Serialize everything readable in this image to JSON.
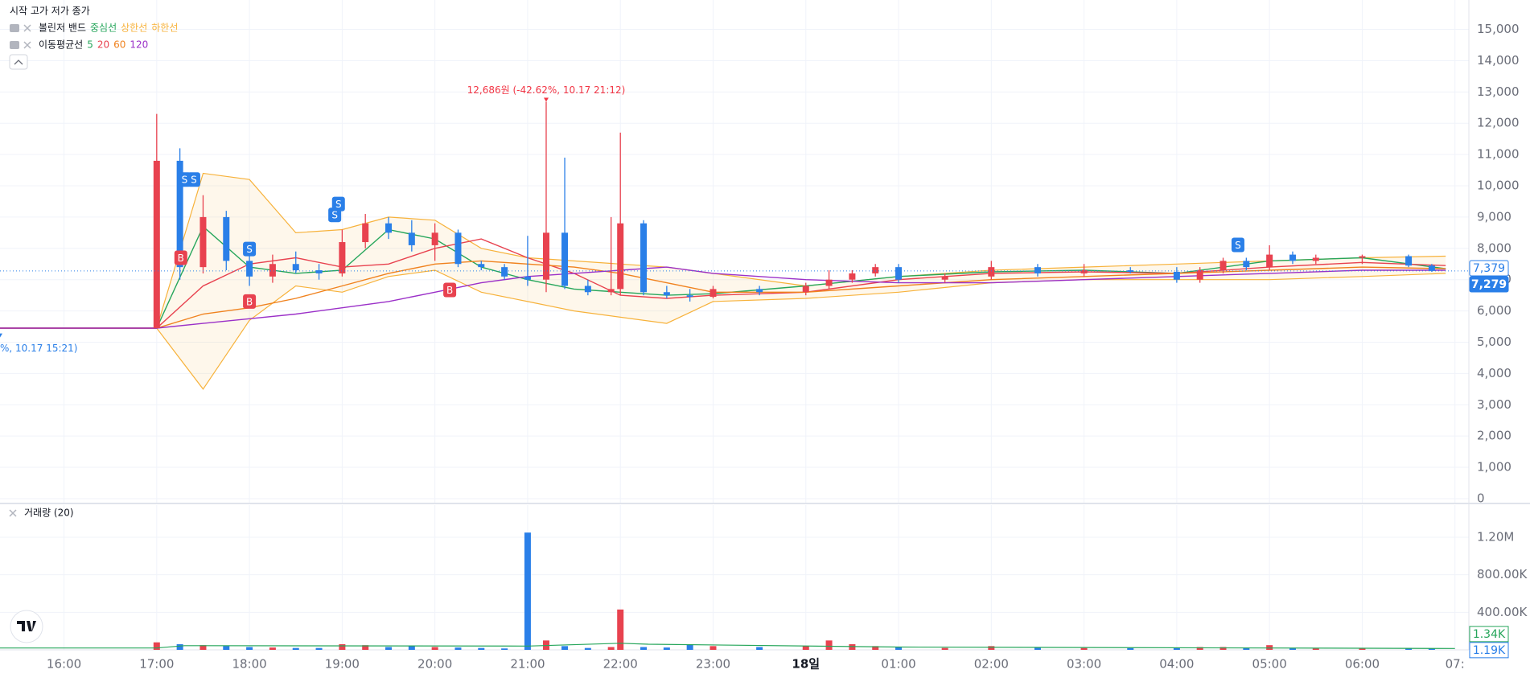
{
  "chart_data": [
    {
      "type": "candlestick",
      "ohlc_label": "시작 고가 저가 종가",
      "xlim": [
        15.31,
        31.15
      ],
      "ylim": [
        -130,
        15940
      ],
      "xticks": [
        {
          "value": 16,
          "label": "16:00"
        },
        {
          "value": 17,
          "label": "17:00"
        },
        {
          "value": 18,
          "label": "18:00"
        },
        {
          "value": 19,
          "label": "19:00"
        },
        {
          "value": 20,
          "label": "20:00"
        },
        {
          "value": 21,
          "label": "21:00"
        },
        {
          "value": 22,
          "label": "22:00"
        },
        {
          "value": 23,
          "label": "23:00"
        },
        {
          "value": 24,
          "label": "18일"
        },
        {
          "value": 25,
          "label": "01:00"
        },
        {
          "value": 26,
          "label": "02:00"
        },
        {
          "value": 27,
          "label": "03:00"
        },
        {
          "value": 28,
          "label": "04:00"
        },
        {
          "value": 29,
          "label": "05:00"
        },
        {
          "value": 30,
          "label": "06:00"
        },
        {
          "value": 31,
          "label": "07:"
        }
      ],
      "yticks": [
        0,
        {
          "value": 1000,
          "label": "1,000"
        },
        {
          "value": 2000,
          "label": "2,000"
        },
        {
          "value": 3000,
          "label": "3,000"
        },
        {
          "value": 4000,
          "label": "4,000"
        },
        {
          "value": 5000,
          "label": "5,000"
        },
        {
          "value": 6000,
          "label": "6,000"
        },
        {
          "value": 7000,
          "label": "7,000"
        },
        {
          "value": 8000,
          "label": "8,000"
        },
        {
          "value": 9000,
          "label": "9,000"
        },
        {
          "value": 10000,
          "label": "10,000"
        },
        {
          "value": 11000,
          "label": "11,000"
        },
        {
          "value": 12000,
          "label": "12,000"
        },
        {
          "value": 13000,
          "label": "13,000"
        },
        {
          "value": 14000,
          "label": "14,000"
        },
        {
          "value": 15000,
          "label": "15,000"
        }
      ],
      "grid": true,
      "up_color": "#e8424f",
      "down_color": "#2a7fe8",
      "x": [
        17,
        17.25,
        17.5,
        17.75,
        18,
        18.25,
        18.5,
        18.75,
        19,
        19.25,
        19.5,
        19.75,
        20,
        20.25,
        20.5,
        20.75,
        21,
        21.2,
        21.4,
        21.65,
        21.9,
        22,
        22.25,
        22.5,
        22.75,
        23,
        23.5,
        24,
        24.25,
        24.5,
        24.75,
        25,
        25.5,
        26,
        26.5,
        27,
        27.5,
        28,
        28.25,
        28.5,
        28.75,
        29,
        29.25,
        29.5,
        30,
        30.5,
        30.75
      ],
      "open": [
        5450,
        10800,
        7400,
        9000,
        7600,
        7100,
        7500,
        7300,
        7200,
        8200,
        8800,
        8500,
        8100,
        8500,
        7500,
        7400,
        7100,
        7000,
        8500,
        6800,
        6600,
        6700,
        8800,
        6600,
        6500,
        6450,
        6700,
        6600,
        6800,
        7000,
        7200,
        7400,
        7000,
        7100,
        7400,
        7200,
        7300,
        7250,
        7000,
        7300,
        7600,
        7400,
        7800,
        7600,
        7700,
        7750,
        7450
      ],
      "high": [
        12300,
        11200,
        9700,
        9200,
        7900,
        7800,
        7900,
        7500,
        8600,
        9100,
        9000,
        8900,
        8800,
        8600,
        7600,
        7500,
        8400,
        12686,
        10900,
        7000,
        9000,
        11700,
        8900,
        6800,
        6700,
        6800,
        6800,
        6900,
        7300,
        7300,
        7500,
        7500,
        7200,
        7600,
        7500,
        7500,
        7400,
        7400,
        7400,
        7700,
        7700,
        8100,
        7900,
        7800,
        7800,
        7800,
        7500
      ],
      "low": [
        5450,
        7000,
        7200,
        7300,
        6800,
        6900,
        7200,
        7000,
        7100,
        8000,
        8300,
        7900,
        7600,
        7400,
        7300,
        7000,
        6800,
        6600,
        6700,
        6500,
        6500,
        6500,
        6500,
        6400,
        6300,
        6400,
        6500,
        6500,
        6700,
        6900,
        7100,
        6900,
        6900,
        7000,
        7100,
        7100,
        7200,
        6900,
        6900,
        7200,
        7300,
        7300,
        7500,
        7500,
        7500,
        7400,
        7250
      ],
      "close": [
        10800,
        7400,
        9000,
        7600,
        7100,
        7500,
        7300,
        7200,
        8200,
        8800,
        8500,
        8100,
        8500,
        7500,
        7400,
        7100,
        7000,
        8500,
        6800,
        6600,
        6700,
        8800,
        6600,
        6500,
        6450,
        6700,
        6600,
        6800,
        7000,
        7200,
        7400,
        7000,
        7100,
        7400,
        7200,
        7300,
        7250,
        7000,
        7300,
        7600,
        7400,
        7800,
        7600,
        7700,
        7750,
        7450,
        7279
      ],
      "ma_title": "이동평균선",
      "lines_x": [
        15.31,
        17,
        17.5,
        18,
        18.5,
        19,
        19.5,
        20,
        20.5,
        21,
        21.5,
        22,
        22.5,
        23,
        24,
        25,
        26,
        27,
        28,
        29,
        30,
        30.9
      ],
      "lines": [
        {
          "name": "5",
          "color": "#26a65b",
          "values": [
            5450,
            5450,
            8700,
            7400,
            7200,
            7300,
            8600,
            8300,
            7400,
            7000,
            6700,
            6600,
            6500,
            6550,
            6800,
            7100,
            7250,
            7300,
            7200,
            7600,
            7700,
            7350
          ]
        },
        {
          "name": "20",
          "color": "#e8424f",
          "values": [
            5450,
            5450,
            6800,
            7500,
            7700,
            7400,
            7500,
            8000,
            8300,
            7700,
            7200,
            6500,
            6400,
            6500,
            6600,
            7000,
            7200,
            7250,
            7200,
            7400,
            7550,
            7450
          ]
        },
        {
          "name": "60",
          "color": "#f0821e",
          "values": [
            5450,
            5450,
            5900,
            6100,
            6400,
            6800,
            7200,
            7500,
            7600,
            7500,
            7400,
            7200,
            6900,
            6600,
            6600,
            6800,
            7000,
            7100,
            7200,
            7300,
            7400,
            7350
          ]
        },
        {
          "name": "120",
          "color": "#9b30c8",
          "values": [
            5450,
            5450,
            5600,
            5750,
            5900,
            6100,
            6300,
            6600,
            6900,
            7100,
            7200,
            7300,
            7400,
            7200,
            7000,
            6900,
            6900,
            7000,
            7100,
            7200,
            7300,
            7300
          ]
        }
      ],
      "bollinger": {
        "title": "볼린저 밴드",
        "middle_name": "중심선",
        "middle_color": "#26a65b",
        "upper": {
          "name": "상한선",
          "color": "#f7b23b",
          "values": [
            5450,
            5450,
            10400,
            10200,
            8500,
            8600,
            9000,
            8900,
            8000,
            7700,
            7600,
            7500,
            7400,
            7200,
            6800,
            7100,
            7300,
            7400,
            7500,
            7600,
            7700,
            7750
          ]
        },
        "lower": {
          "name": "하한선",
          "color": "#f7b23b",
          "values": [
            5450,
            5450,
            3500,
            5700,
            6800,
            6600,
            7100,
            7300,
            6600,
            6300,
            6000,
            5800,
            5600,
            6300,
            6400,
            6600,
            6900,
            7000,
            7000,
            7000,
            7100,
            7200
          ]
        }
      },
      "signals": [
        {
          "x": 17.3,
          "y": 10200,
          "label": "S"
        },
        {
          "x": 17.4,
          "y": 10200,
          "label": "S"
        },
        {
          "x": 17.26,
          "y": 7700,
          "label": "B"
        },
        {
          "x": 18.0,
          "y": 7980,
          "label": "S"
        },
        {
          "x": 18.0,
          "y": 6300,
          "label": "B"
        },
        {
          "x": 18.92,
          "y": 9070,
          "label": "S"
        },
        {
          "x": 18.96,
          "y": 9420,
          "label": "S"
        },
        {
          "x": 20.16,
          "y": 6670,
          "label": "B"
        },
        {
          "x": 28.66,
          "y": 8110,
          "label": "S"
        }
      ],
      "annotations": [
        {
          "text": "12,686원 (-42.62%, 10.17 21:12)",
          "x": 21.2,
          "y": 12686,
          "color": "#f23645"
        },
        {
          "text": "%, 10.17 15:21)",
          "x": 15.31,
          "y": 5150,
          "color": "#2a7fe8"
        }
      ],
      "price_labels": [
        {
          "value": 7379,
          "label": "7,379",
          "style": "outline"
        },
        {
          "value": 7279,
          "label": "7,279",
          "style": "filled"
        }
      ]
    },
    {
      "type": "bar",
      "title": "거래량 (20)",
      "ylim": [
        0,
        1543000
      ],
      "yticks": [
        {
          "value": 400000,
          "label": "400.00K"
        },
        {
          "value": 800000,
          "label": "800.00K"
        },
        {
          "value": 1200000,
          "label": "1.20M"
        }
      ],
      "x": [
        17,
        17.25,
        17.5,
        17.75,
        18,
        18.25,
        18.5,
        18.75,
        19,
        19.25,
        19.5,
        19.75,
        20,
        20.25,
        20.5,
        20.75,
        21,
        21.2,
        21.4,
        21.65,
        21.9,
        22,
        22.25,
        22.5,
        22.75,
        23,
        23.5,
        24,
        24.25,
        24.5,
        24.75,
        25,
        25.5,
        26,
        26.5,
        27,
        27.5,
        28,
        28.25,
        28.5,
        28.75,
        29,
        29.25,
        29.5,
        30,
        30.5,
        30.75
      ],
      "values": [
        80000,
        60000,
        50000,
        40000,
        30000,
        25000,
        20000,
        20000,
        60000,
        50000,
        30000,
        40000,
        30000,
        25000,
        20000,
        15000,
        1250000,
        100000,
        40000,
        20000,
        30000,
        430000,
        30000,
        25000,
        60000,
        40000,
        30000,
        40000,
        100000,
        60000,
        40000,
        30000,
        20000,
        40000,
        25000,
        20000,
        20000,
        25000,
        30000,
        30000,
        20000,
        50000,
        20000,
        15000,
        15000,
        20000,
        15000
      ],
      "ma": {
        "color": "#26a65b",
        "x": [
          15.31,
          17,
          17.3,
          21,
          22,
          22.3,
          25,
          31
        ],
        "values": [
          20000,
          20000,
          45000,
          40000,
          70000,
          60000,
          30000,
          15000
        ]
      },
      "last_labels": [
        {
          "value": 1340,
          "label": "1.34K",
          "color": "#26a65b"
        },
        {
          "value": 1190,
          "label": "1.19K",
          "color": "#2a7fe8"
        }
      ]
    }
  ]
}
